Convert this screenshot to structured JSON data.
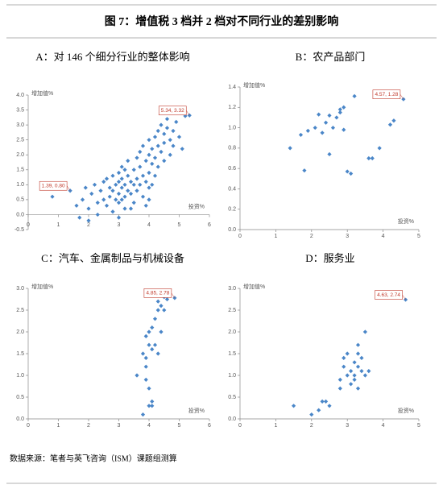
{
  "title": "图 7：增值税 3 档并 2 档对不同行业的差别影响",
  "source": "数据来源：笔者与英飞咨询（ISM）课题组测算",
  "chart_data": [
    {
      "type": "scatter",
      "title": "A：对 146 个细分行业的整体影响",
      "x_label": "投资%",
      "y_label": "增加值%",
      "color": "#4a86c8",
      "x": [
        0.8,
        1.39,
        1.6,
        1.7,
        1.8,
        1.9,
        2.0,
        2.1,
        2.2,
        2.3,
        2.3,
        2.4,
        2.5,
        2.5,
        2.6,
        2.6,
        2.7,
        2.7,
        2.8,
        2.8,
        2.8,
        2.9,
        2.9,
        3.0,
        3.0,
        3.0,
        3.0,
        3.1,
        3.1,
        3.1,
        3.1,
        3.2,
        3.2,
        3.2,
        3.2,
        3.3,
        3.3,
        3.3,
        3.4,
        3.4,
        3.5,
        3.5,
        3.5,
        3.6,
        3.6,
        3.6,
        3.7,
        3.7,
        3.7,
        3.8,
        3.8,
        3.8,
        3.9,
        3.9,
        3.9,
        4.0,
        4.0,
        4.0,
        4.0,
        4.1,
        4.1,
        4.1,
        4.2,
        4.2,
        4.2,
        4.3,
        4.3,
        4.3,
        4.4,
        4.4,
        4.5,
        4.5,
        4.5,
        4.6,
        4.6,
        4.7,
        4.7,
        4.8,
        4.9,
        5.0,
        5.1,
        5.2,
        5.34,
        4.8,
        3.4,
        2.0,
        3.0,
        4.0
      ],
      "values": [
        0.6,
        0.8,
        0.3,
        -0.1,
        0.5,
        0.9,
        0.2,
        0.7,
        1.0,
        0.4,
        0.0,
        0.8,
        1.1,
        0.5,
        1.2,
        0.3,
        0.9,
        0.6,
        1.3,
        0.8,
        0.1,
        1.0,
        0.5,
        1.4,
        1.1,
        0.7,
        0.4,
        1.6,
        1.2,
        0.9,
        0.5,
        1.5,
        1.0,
        0.6,
        0.2,
        1.3,
        0.8,
        1.8,
        1.1,
        0.7,
        1.5,
        1.0,
        0.4,
        1.2,
        1.9,
        0.8,
        1.6,
        1.0,
        2.1,
        1.3,
        0.6,
        2.3,
        1.8,
        1.1,
        0.3,
        2.0,
        1.4,
        2.5,
        0.5,
        1.7,
        2.2,
        1.0,
        2.6,
        1.9,
        1.3,
        2.3,
        2.8,
        1.6,
        2.1,
        3.0,
        2.7,
        2.4,
        1.8,
        3.2,
        2.9,
        2.5,
        2.0,
        2.8,
        3.1,
        2.6,
        2.2,
        3.3,
        3.32,
        2.3,
        0.2,
        -0.2,
        -0.1,
        0.9
      ],
      "value_labels": [
        null,
        "1.39, 0.80",
        null,
        null,
        null,
        null,
        null,
        null,
        null,
        null,
        null,
        null,
        null,
        null,
        null,
        null,
        null,
        null,
        null,
        null,
        null,
        null,
        null,
        null,
        null,
        null,
        null,
        null,
        null,
        null,
        null,
        null,
        null,
        null,
        null,
        null,
        null,
        null,
        null,
        null,
        null,
        null,
        null,
        null,
        null,
        null,
        null,
        null,
        null,
        null,
        null,
        null,
        null,
        null,
        null,
        null,
        null,
        null,
        null,
        null,
        null,
        null,
        null,
        null,
        null,
        null,
        null,
        null,
        null,
        null,
        null,
        null,
        null,
        null,
        null,
        null,
        null,
        null,
        null,
        null,
        null,
        null,
        "5.34, 3.32",
        null,
        null,
        null,
        null,
        null
      ],
      "xlim": [
        0,
        6
      ],
      "xticks": [
        0,
        1,
        2,
        3,
        4,
        5,
        6
      ],
      "ylim": [
        -0.5,
        4.0
      ],
      "yticks": [
        -0.5,
        {
          "value": 0,
          "label": "0.0"
        },
        0.5,
        {
          "value": 1,
          "label": "1.0"
        },
        1.5,
        {
          "value": 2,
          "label": "2.0"
        },
        2.5,
        {
          "value": 3,
          "label": "3.0"
        },
        3.5,
        {
          "value": 4,
          "label": "4.0"
        }
      ]
    },
    {
      "type": "scatter",
      "title": "B：农产品部门",
      "x_label": "投资%",
      "y_label": "增加值%",
      "color": "#4a86c8",
      "x": [
        1.4,
        1.7,
        1.8,
        1.9,
        2.1,
        2.2,
        2.3,
        2.4,
        2.5,
        2.5,
        2.6,
        2.7,
        2.8,
        2.8,
        2.9,
        2.9,
        3.0,
        3.1,
        3.2,
        3.6,
        3.7,
        3.9,
        4.2,
        4.3,
        4.57
      ],
      "values": [
        0.8,
        0.93,
        0.58,
        0.97,
        1.0,
        1.13,
        0.95,
        1.05,
        0.74,
        1.12,
        1.0,
        1.1,
        1.18,
        1.15,
        1.2,
        0.98,
        0.57,
        0.55,
        1.31,
        0.7,
        0.7,
        0.8,
        1.03,
        1.07,
        1.28
      ],
      "value_labels": [
        null,
        null,
        null,
        null,
        null,
        null,
        null,
        null,
        null,
        null,
        null,
        null,
        null,
        null,
        null,
        null,
        null,
        null,
        null,
        null,
        null,
        null,
        null,
        null,
        "4.57, 1.28"
      ],
      "xlim": [
        0,
        5
      ],
      "xticks": [
        0,
        1,
        2,
        3,
        4,
        5
      ],
      "ylim": [
        0,
        1.4
      ],
      "yticks": [
        {
          "value": 0,
          "label": "0.0"
        },
        0.2,
        0.4,
        0.6,
        0.8,
        {
          "value": 1,
          "label": "1.0"
        },
        1.2,
        1.4
      ]
    },
    {
      "type": "scatter",
      "title": "C：汽车、金属制品与机械设备",
      "x_label": "投资%",
      "y_label": "增加值%",
      "color": "#4a86c8",
      "x": [
        3.6,
        3.8,
        3.8,
        3.9,
        3.9,
        3.9,
        4.0,
        4.0,
        4.0,
        4.0,
        4.1,
        4.1,
        4.1,
        4.1,
        4.2,
        4.2,
        4.3,
        4.3,
        4.4,
        4.4,
        4.5,
        4.5,
        4.6,
        4.85,
        3.9,
        4.3
      ],
      "values": [
        1.0,
        0.1,
        1.5,
        1.9,
        1.2,
        0.9,
        1.7,
        2.0,
        0.3,
        0.7,
        0.4,
        0.3,
        2.1,
        1.6,
        2.3,
        1.7,
        2.5,
        1.5,
        2.6,
        2.0,
        2.8,
        2.5,
        2.75,
        2.78,
        1.4,
        2.7
      ],
      "value_labels": [
        null,
        null,
        null,
        null,
        null,
        null,
        null,
        null,
        null,
        null,
        null,
        null,
        null,
        null,
        null,
        null,
        null,
        null,
        null,
        null,
        null,
        null,
        null,
        "4.85, 2.78",
        null,
        null
      ],
      "xlim": [
        0,
        6
      ],
      "xticks": [
        0,
        1,
        2,
        3,
        4,
        5,
        6
      ],
      "ylim": [
        0,
        3.0
      ],
      "yticks": [
        {
          "value": 0,
          "label": "0.0"
        },
        0.5,
        {
          "value": 1,
          "label": "1.0"
        },
        1.5,
        {
          "value": 2,
          "label": "2.0"
        },
        2.5,
        {
          "value": 3,
          "label": "3.0"
        }
      ]
    },
    {
      "type": "scatter",
      "title": "D：服务业",
      "x_label": "投资%",
      "y_label": "增加值%",
      "color": "#4a86c8",
      "x": [
        1.5,
        2.0,
        2.2,
        2.3,
        2.4,
        2.5,
        2.8,
        2.8,
        2.9,
        2.9,
        3.0,
        3.0,
        3.1,
        3.1,
        3.2,
        3.2,
        3.2,
        3.3,
        3.3,
        3.3,
        3.4,
        3.4,
        3.5,
        3.5,
        3.6,
        4.63,
        3.3
      ],
      "values": [
        0.3,
        0.1,
        0.2,
        0.4,
        0.4,
        0.3,
        0.7,
        0.9,
        1.4,
        1.2,
        1.0,
        1.5,
        1.1,
        0.8,
        1.3,
        0.9,
        1.0,
        1.5,
        1.2,
        0.7,
        1.4,
        1.1,
        1.0,
        2.0,
        1.1,
        2.74,
        1.7
      ],
      "value_labels": [
        null,
        null,
        null,
        null,
        null,
        null,
        null,
        null,
        null,
        null,
        null,
        null,
        null,
        null,
        null,
        null,
        null,
        null,
        null,
        null,
        null,
        null,
        null,
        null,
        null,
        "4.63, 2.74",
        null
      ],
      "xlim": [
        0,
        5
      ],
      "xticks": [
        0,
        1,
        2,
        3,
        4,
        5
      ],
      "ylim": [
        0,
        3.0
      ],
      "yticks": [
        {
          "value": 0,
          "label": "0.0"
        },
        0.5,
        {
          "value": 1,
          "label": "1.0"
        },
        1.5,
        {
          "value": 2,
          "label": "2.0"
        },
        2.5,
        {
          "value": 3,
          "label": "3.0"
        }
      ]
    }
  ]
}
